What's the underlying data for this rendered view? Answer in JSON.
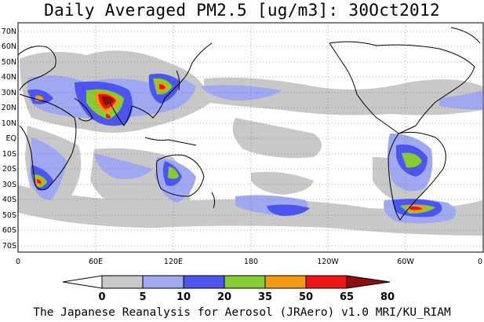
{
  "title": "Daily Averaged PM2.5 [ug/m3]: 30Oct2012",
  "credit": "The Japanese Reanalysis for Aerosol (JRAero) v1.0 MRI/KU_RIAM",
  "map": {
    "projection": "equirectangular",
    "lon_range": [
      0,
      360
    ],
    "lat_range": [
      -75,
      75
    ],
    "grid": "dotted every 10 deg",
    "lat_labels": [
      "70N",
      "60N",
      "50N",
      "40N",
      "30N",
      "20N",
      "10N",
      "EQ",
      "10S",
      "20S",
      "30S",
      "40S",
      "50S",
      "60S",
      "70S"
    ],
    "lon_labels": [
      "0",
      "60E",
      "120E",
      "180",
      "120W",
      "60W",
      "0"
    ]
  },
  "colorbar": {
    "levels": [
      "0",
      "5",
      "10",
      "20",
      "35",
      "50",
      "65",
      "80"
    ],
    "colors": [
      "#ffffff",
      "#c8c8c8",
      "#a0a8f0",
      "#4c56ee",
      "#86cc32",
      "#f39a14",
      "#ee1414",
      "#8c1010"
    ]
  }
}
